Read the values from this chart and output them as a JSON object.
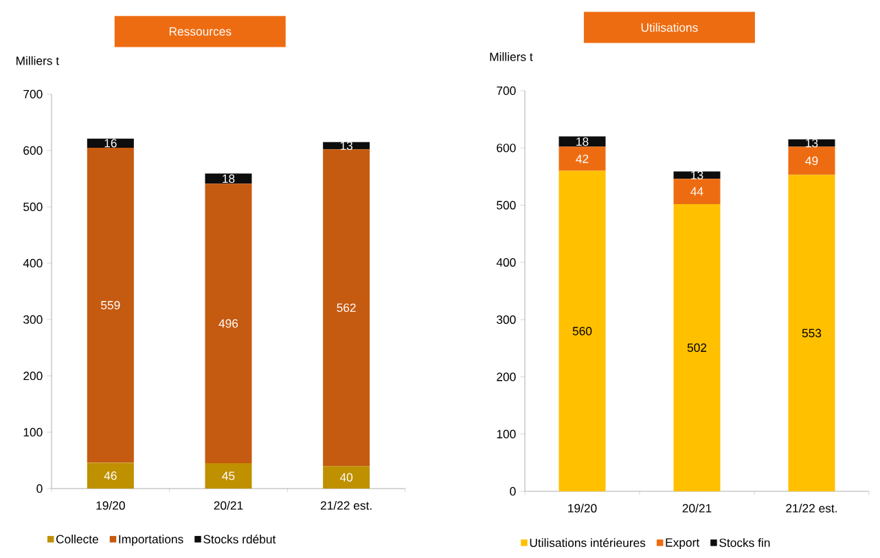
{
  "chart_data": [
    {
      "type": "bar",
      "title": "Ressources",
      "ylabel": "Milliers t",
      "categories": [
        "19/20",
        "20/21",
        "21/22 est."
      ],
      "stacked": true,
      "data_labels": true,
      "legend": "bottom",
      "ylim": [
        0,
        700
      ],
      "yticks": [
        0,
        100,
        200,
        300,
        400,
        500,
        600,
        700
      ],
      "series": [
        {
          "name": "Collecte",
          "color": "#bf9000",
          "values": [
            46,
            45,
            40
          ]
        },
        {
          "name": "Importations",
          "color": "#c55a11",
          "values": [
            559,
            496,
            562
          ]
        },
        {
          "name": "Stocks rdébut",
          "color": "#0d0d0d",
          "values": [
            16,
            18,
            13
          ]
        }
      ]
    },
    {
      "type": "bar",
      "title": "Utilisations",
      "ylabel": "Milliers t",
      "categories": [
        "19/20",
        "20/21",
        "21/22 est."
      ],
      "stacked": true,
      "data_labels": true,
      "legend": "bottom",
      "ylim": [
        0,
        700
      ],
      "yticks": [
        0,
        100,
        200,
        300,
        400,
        500,
        600,
        700
      ],
      "series": [
        {
          "name": "Utilisations intérieures",
          "color": "#ffc000",
          "values": [
            560,
            502,
            553
          ]
        },
        {
          "name": "Export",
          "color": "#ee6c11",
          "values": [
            42,
            44,
            49
          ]
        },
        {
          "name": "Stocks fin",
          "color": "#0d0d0d",
          "values": [
            18,
            13,
            13
          ]
        }
      ]
    }
  ]
}
